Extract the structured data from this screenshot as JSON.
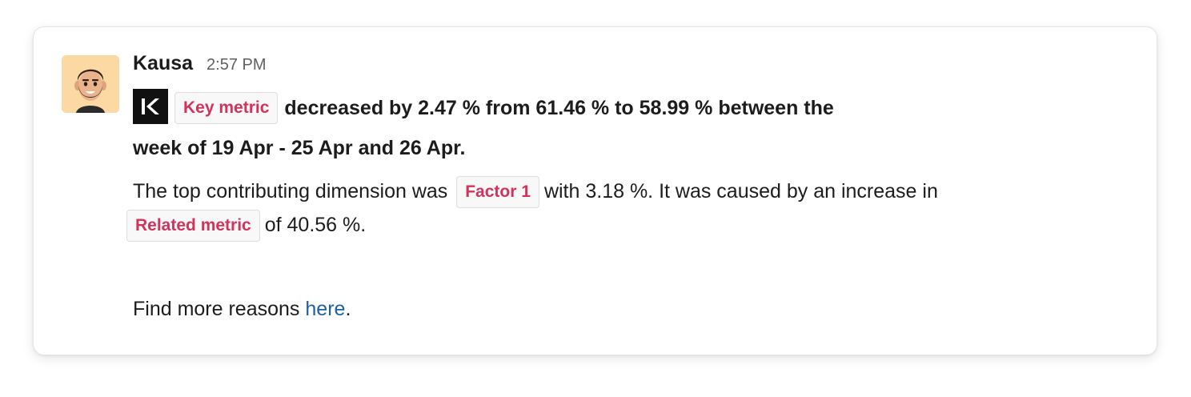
{
  "message": {
    "sender": "Kausa",
    "time": "2:57 PM",
    "avatar_icon": "memoji-avatar-icon",
    "app_logo_icon": "kausa-logo-icon",
    "headline": {
      "chip_key_metric": "Key metric",
      "text_line": "decreased by 2.47 % from 61.46 % to 58.99 % between the",
      "text_line2": "week of 19 Apr - 25 Apr and 26 Apr."
    },
    "paragraph": {
      "text_before_factor": "The top contributing dimension was",
      "chip_factor": "Factor 1",
      "text_after_factor": "with 3.18 %. It was caused by an increase in",
      "chip_related": "Related metric",
      "text_after_related": "of 40.56 %."
    },
    "footer": {
      "text_before_link": "Find more reasons",
      "link_text": "here",
      "text_after_link": "."
    }
  },
  "colors": {
    "chip_text": "#d1335b",
    "link": "#1d5fa8",
    "avatar_bg": "#fcd9a2"
  }
}
